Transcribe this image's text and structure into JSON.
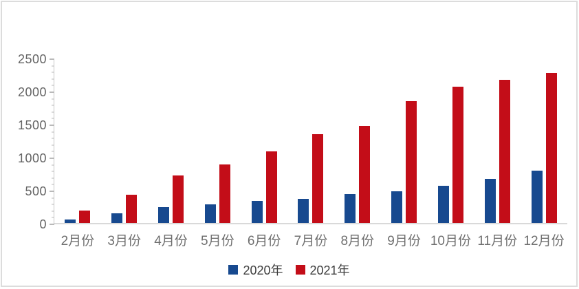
{
  "chart_data": {
    "type": "bar",
    "title": "",
    "categories": [
      "2月份",
      "3月份",
      "4月份",
      "5月份",
      "6月份",
      "7月份",
      "8月份",
      "9月份",
      "10月份",
      "11月份",
      "12月份"
    ],
    "series": [
      {
        "name": "2020年",
        "color": "#17498f",
        "values": [
          50,
          150,
          240,
          280,
          340,
          370,
          440,
          480,
          570,
          670,
          800
        ]
      },
      {
        "name": "2021年",
        "color": "#c30d18",
        "values": [
          190,
          430,
          720,
          890,
          1090,
          1360,
          1480,
          1860,
          2080,
          2190,
          2290
        ]
      }
    ],
    "ylim": [
      0,
      2500
    ],
    "y_major_step": 500,
    "y_minor_step": 100,
    "y_tick_labels": [
      "0",
      "500",
      "1000",
      "1500",
      "2000",
      "2500"
    ],
    "grid": false,
    "legend_position": "bottom",
    "axis_color": "#c6c6c6",
    "label_color": "#6f6f6f"
  },
  "legend": {
    "items": [
      {
        "label": "2020年",
        "color": "#17498f"
      },
      {
        "label": "2021年",
        "color": "#c30d18"
      }
    ]
  }
}
